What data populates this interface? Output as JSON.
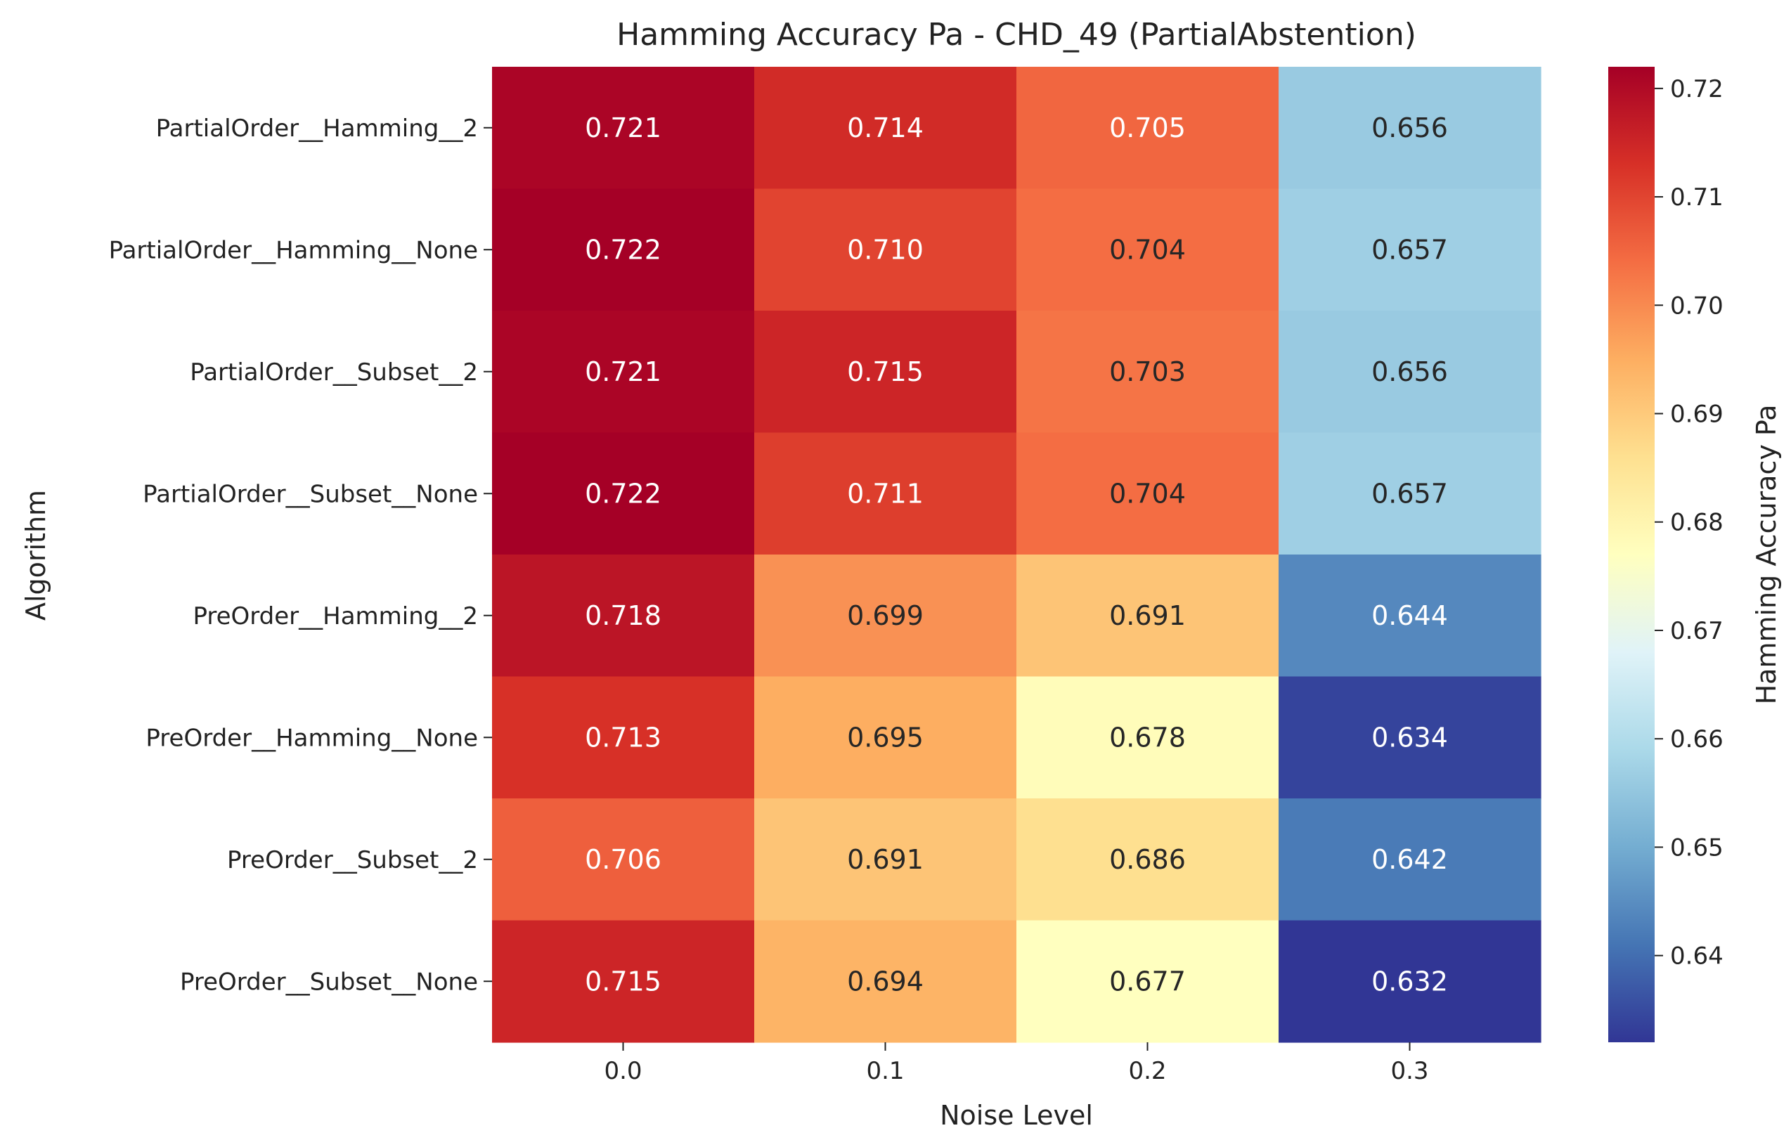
{
  "chart_data": {
    "type": "heatmap",
    "title": "Hamming Accuracy Pa - CHD_49 (PartialAbstention)",
    "xlabel": "Noise Level",
    "ylabel": "Algorithm",
    "colorbar_label": "Hamming Accuracy Pa",
    "colormap": "RdYlBu_r",
    "x_categories": [
      "0.0",
      "0.1",
      "0.2",
      "0.3"
    ],
    "y_categories": [
      "PartialOrder__Hamming__2",
      "PartialOrder__Hamming__None",
      "PartialOrder__Subset__2",
      "PartialOrder__Subset__None",
      "PreOrder__Hamming__2",
      "PreOrder__Hamming__None",
      "PreOrder__Subset__2",
      "PreOrder__Subset__None"
    ],
    "values": [
      [
        0.721,
        0.714,
        0.705,
        0.656
      ],
      [
        0.722,
        0.71,
        0.704,
        0.657
      ],
      [
        0.721,
        0.715,
        0.703,
        0.656
      ],
      [
        0.722,
        0.711,
        0.704,
        0.657
      ],
      [
        0.718,
        0.699,
        0.691,
        0.644
      ],
      [
        0.713,
        0.695,
        0.678,
        0.634
      ],
      [
        0.706,
        0.691,
        0.686,
        0.642
      ],
      [
        0.715,
        0.694,
        0.677,
        0.632
      ]
    ],
    "value_range": [
      0.632,
      0.722
    ],
    "colorbar_ticks": [
      "0.64",
      "0.65",
      "0.66",
      "0.67",
      "0.68",
      "0.69",
      "0.70",
      "0.71",
      "0.72"
    ]
  }
}
